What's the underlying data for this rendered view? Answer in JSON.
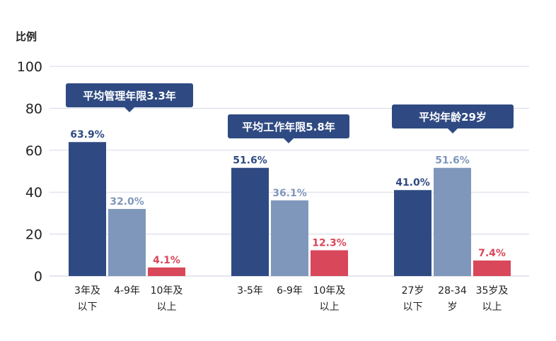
{
  "chart_data": {
    "type": "bar",
    "ylabel": "比例",
    "ylim": [
      0,
      100
    ],
    "yticks": [
      0,
      20,
      40,
      60,
      80,
      100
    ],
    "grid": true,
    "colors": {
      "dark": "#2f4a82",
      "light": "#7f97bb",
      "red": "#d9475a",
      "grid": "#d5dae8",
      "callout": "#2f4a82"
    },
    "groups": [
      {
        "callout": "平均管理年限3.3年",
        "bars": [
          {
            "category": [
              "3年及",
              "以下"
            ],
            "value": 63.9,
            "label": "63.9%",
            "color": "dark"
          },
          {
            "category": [
              "4-9年"
            ],
            "value": 32.0,
            "label": "32.0%",
            "color": "light"
          },
          {
            "category": [
              "10年及",
              "以上"
            ],
            "value": 4.1,
            "label": "4.1%",
            "color": "red"
          }
        ]
      },
      {
        "callout": "平均工作年限5.8年",
        "bars": [
          {
            "category": [
              "3-5年"
            ],
            "value": 51.6,
            "label": "51.6%",
            "color": "dark"
          },
          {
            "category": [
              "6-9年"
            ],
            "value": 36.1,
            "label": "36.1%",
            "color": "light"
          },
          {
            "category": [
              "10年及",
              "以上"
            ],
            "value": 12.3,
            "label": "12.3%",
            "color": "red"
          }
        ]
      },
      {
        "callout": "平均年龄29岁",
        "bars": [
          {
            "category": [
              "27岁",
              "以下"
            ],
            "value": 41.0,
            "label": "41.0%",
            "color": "dark"
          },
          {
            "category": [
              "28-34",
              "岁"
            ],
            "value": 51.6,
            "label": "51.6%",
            "color": "light"
          },
          {
            "category": [
              "35岁及",
              "以上"
            ],
            "value": 7.4,
            "label": "7.4%",
            "color": "red"
          }
        ]
      }
    ]
  }
}
